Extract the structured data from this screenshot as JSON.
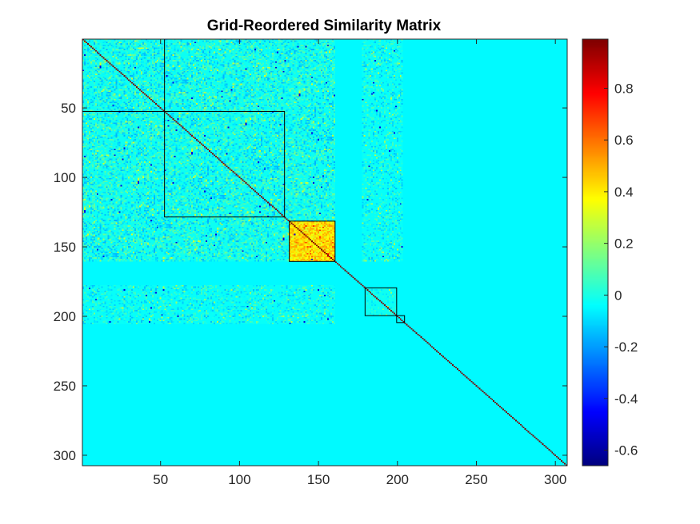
{
  "chart_data": {
    "type": "heatmap",
    "title": "Grid-Reordered Similarity Matrix",
    "xlabel": "",
    "ylabel": "",
    "matrix_size": 307,
    "x_ticks": [
      50,
      100,
      150,
      200,
      250,
      300
    ],
    "y_ticks": [
      50,
      100,
      150,
      200,
      250,
      300
    ],
    "xlim": [
      0.5,
      307.5
    ],
    "ylim": [
      0.5,
      307.5
    ],
    "y_direction": "reverse",
    "colorbar": {
      "colormap": "jet",
      "clim": [
        -0.66,
        0.99
      ],
      "ticks": [
        -0.6,
        -0.4,
        -0.2,
        0,
        0.2,
        0.4,
        0.6,
        0.8
      ],
      "tick_labels": [
        "-0.6",
        "-0.4",
        "-0.2",
        "0",
        "0.2",
        "0.4",
        "0.6",
        "0.8"
      ]
    },
    "background_value": -0.05,
    "diagonal_value": 0.99,
    "cluster_boxes": [
      {
        "start": 1,
        "end": 52
      },
      {
        "start": 53,
        "end": 128
      },
      {
        "start": 132,
        "end": 160
      },
      {
        "start": 180,
        "end": 199
      },
      {
        "start": 200,
        "end": 204
      }
    ],
    "noisy_regions": [
      {
        "rows": [
          1,
          160
        ],
        "cols": [
          1,
          160
        ],
        "base": -0.02,
        "noise_amplitude": 0.15,
        "density": 0.55
      },
      {
        "rows": [
          1,
          160
        ],
        "cols": [
          178,
          203
        ],
        "base": -0.03,
        "noise_amplitude": 0.12,
        "density": 0.4
      },
      {
        "rows": [
          178,
          205
        ],
        "cols": [
          1,
          160
        ],
        "base": -0.03,
        "noise_amplitude": 0.12,
        "density": 0.4
      },
      {
        "rows": [
          132,
          160
        ],
        "cols": [
          132,
          160
        ],
        "base": 0.42,
        "noise_amplitude": 0.12,
        "density": 0.9
      },
      {
        "rows": [
          180,
          199
        ],
        "cols": [
          180,
          199
        ],
        "base": -0.02,
        "noise_amplitude": 0.08,
        "density": 0.3
      }
    ],
    "hot_cells": [
      {
        "row": 60,
        "col": 60,
        "value": 0.98
      },
      {
        "row": 157,
        "col": 157,
        "value": 0.95
      },
      {
        "row": 202,
        "col": 202,
        "value": 0.97
      },
      {
        "row": 51,
        "col": 51,
        "value": 0.95
      }
    ]
  }
}
